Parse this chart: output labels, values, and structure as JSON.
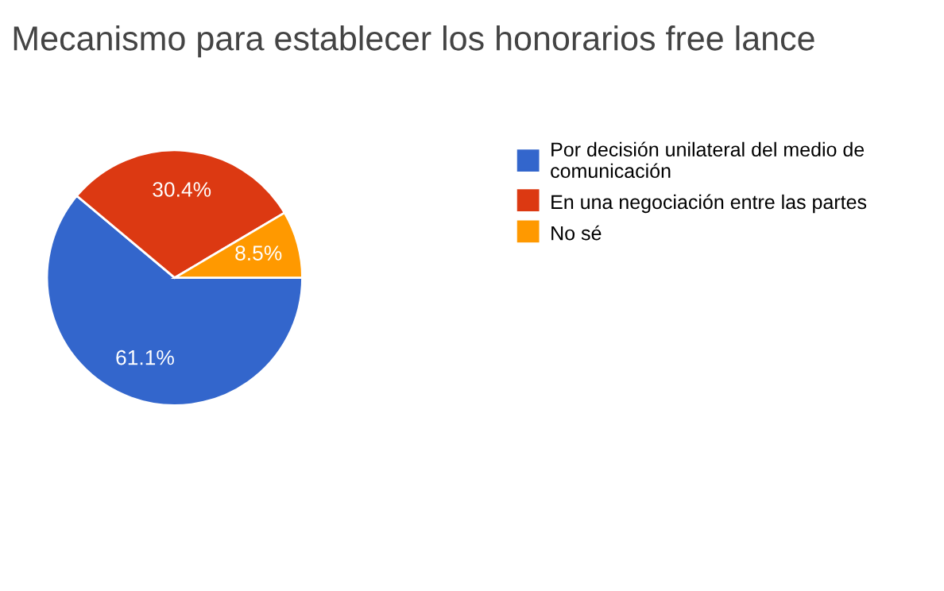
{
  "chart_data": {
    "type": "pie",
    "title": "Mecanismo para establecer los honorarios free lance",
    "categories": [
      "Por decisión unilateral del medio de\ncomunicación",
      "En una negociación entre las partes",
      "No sé"
    ],
    "values": [
      61.1,
      30.4,
      8.5
    ],
    "colors": [
      "#3366cc",
      "#dc3912",
      "#ff9900"
    ],
    "value_labels": [
      "61.1%",
      "30.4%",
      "8.5%"
    ],
    "legend": "right"
  }
}
